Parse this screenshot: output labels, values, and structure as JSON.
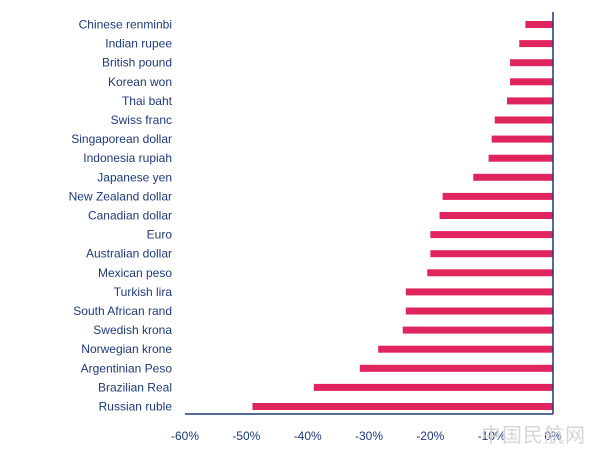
{
  "chart_data": {
    "type": "bar",
    "orientation": "horizontal",
    "categories": [
      "Chinese renminbi",
      "Indian rupee",
      "British pound",
      "Korean won",
      "Thai baht",
      "Swiss franc",
      "Singaporean dollar",
      "Indonesia rupiah",
      "Japanese yen",
      "New Zealand dollar",
      "Canadian dollar",
      "Euro",
      "Australian dollar",
      "Mexican peso",
      "Turkish lira",
      "South African rand",
      "Swedish krona",
      "Norwegian krone",
      "Argentinian Peso",
      "Brazilian Real",
      "Russian ruble"
    ],
    "values": [
      -4.5,
      -5.5,
      -7.0,
      -7.0,
      -7.5,
      -9.5,
      -10.0,
      -10.5,
      -13.0,
      -18.0,
      -18.5,
      -20.0,
      -20.0,
      -20.5,
      -24.0,
      -24.0,
      -24.5,
      -28.5,
      -31.5,
      -39.0,
      -49.0
    ],
    "xlim": [
      -60,
      0
    ],
    "xticks": [
      -60,
      -50,
      -40,
      -30,
      -20,
      -10,
      0
    ],
    "xtick_labels": [
      "-60%",
      "-50%",
      "-40%",
      "-30%",
      "-20%",
      "-10%",
      "0%"
    ],
    "title": "",
    "xlabel": "",
    "ylabel": "",
    "grid": false,
    "legend": "none",
    "bar_color": "#e0245e",
    "text_color": "#1f3a78"
  },
  "watermark": "中国民航网"
}
